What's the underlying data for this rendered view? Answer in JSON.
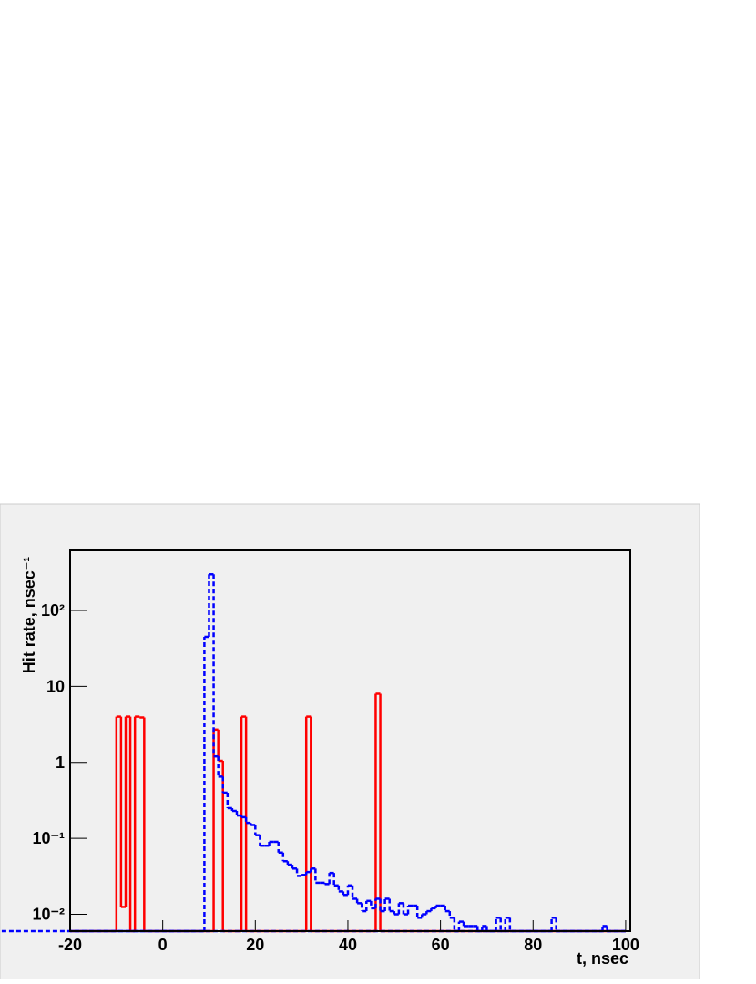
{
  "chart_data": {
    "type": "histogram",
    "xlabel": "t,  nsec",
    "ylabel": "Hit rate, nsec⁻¹",
    "log_y": true,
    "xlim": [
      -20,
      101
    ],
    "xticks": [
      -20,
      0,
      20,
      40,
      60,
      80,
      100
    ],
    "ylim": [
      0.006,
      620
    ],
    "yticks": [
      {
        "value": 0.01,
        "label": "10⁻²"
      },
      {
        "value": 0.1,
        "label": "10⁻¹"
      },
      1,
      10,
      {
        "value": 100,
        "label": "10²"
      }
    ],
    "bins": [
      -20,
      -19,
      -18,
      -17,
      -16,
      -15,
      -14,
      -13,
      -12,
      -11,
      -10,
      -9,
      -8,
      -7,
      -6,
      -5,
      -4,
      -3,
      -2,
      -1,
      0,
      1,
      2,
      3,
      4,
      5,
      6,
      7,
      8,
      9,
      10,
      11,
      12,
      13,
      14,
      15,
      16,
      17,
      18,
      19,
      20,
      21,
      22,
      23,
      24,
      25,
      26,
      27,
      28,
      29,
      30,
      31,
      32,
      33,
      34,
      35,
      36,
      37,
      38,
      39,
      40,
      41,
      42,
      43,
      44,
      45,
      46,
      47,
      48,
      49,
      50,
      51,
      52,
      53,
      54,
      55,
      56,
      57,
      58,
      59,
      60,
      61,
      62,
      63,
      64,
      65,
      66,
      67,
      68,
      69,
      70,
      71,
      72,
      73,
      74,
      75,
      76,
      77,
      78,
      79,
      80,
      81,
      82,
      83,
      84,
      85,
      86,
      87,
      88,
      89,
      90,
      91,
      92,
      93,
      94,
      95,
      96,
      97,
      98,
      99,
      100
    ],
    "series": [
      {
        "color": "#ff0000",
        "style": "solid",
        "values": [
          0,
          0,
          0,
          0,
          0,
          0,
          0,
          0,
          0,
          0,
          4,
          0.0125,
          4,
          0,
          4,
          3.9,
          0,
          0,
          0,
          0,
          0,
          0,
          0,
          0,
          0,
          0,
          0,
          0,
          0,
          0,
          0,
          2.7,
          1.05,
          0,
          0,
          0,
          0,
          4,
          0,
          0,
          0,
          0,
          0,
          0,
          0,
          0,
          0,
          0,
          0,
          0,
          0,
          4,
          0,
          0,
          0,
          0,
          0,
          0,
          0,
          0,
          0,
          0,
          0,
          0,
          0,
          0,
          8,
          0,
          0,
          0,
          0,
          0,
          0,
          0,
          0,
          0,
          0,
          0,
          0,
          0,
          0,
          0,
          0,
          0,
          0,
          0,
          0,
          0,
          0,
          0,
          0,
          0,
          0,
          0,
          0,
          0,
          0,
          0,
          0,
          0,
          0,
          0,
          0,
          0,
          0,
          0,
          0,
          0,
          0,
          0,
          0,
          0,
          0,
          0,
          0,
          0,
          0,
          0,
          0,
          0
        ]
      },
      {
        "color": "#0000ff",
        "style": "dashed",
        "values": [
          0,
          0,
          0,
          0,
          0,
          0,
          0,
          0,
          0,
          0,
          0,
          0,
          0,
          0,
          0,
          0,
          0,
          0,
          0,
          0,
          0,
          0,
          0,
          0,
          0,
          0,
          0,
          0,
          0,
          45,
          300,
          1.2,
          0.65,
          0.4,
          0.25,
          0.23,
          0.2,
          0.19,
          0.16,
          0.15,
          0.11,
          0.08,
          0.08,
          0.09,
          0.09,
          0.065,
          0.05,
          0.045,
          0.04,
          0.032,
          0.033,
          0.036,
          0.04,
          0.026,
          0.026,
          0.025,
          0.035,
          0.024,
          0.02,
          0.018,
          0.024,
          0.016,
          0.014,
          0.011,
          0.015,
          0.012,
          0.016,
          0.011,
          0.016,
          0.011,
          0.01,
          0.014,
          0.01,
          0.013,
          0.013,
          0.009,
          0.01,
          0.011,
          0.012,
          0.013,
          0.013,
          0.011,
          0.009,
          0,
          0.008,
          0.007,
          0.007,
          0.007,
          0,
          0.007,
          0,
          0,
          0.009,
          0,
          0.009,
          0,
          0,
          0,
          0,
          0,
          0,
          0,
          0,
          0,
          0.009,
          0,
          0,
          0,
          0,
          0,
          0,
          0,
          0,
          0,
          0,
          0.007,
          0,
          0,
          0,
          0,
          0,
          0,
          0,
          0
        ]
      }
    ]
  }
}
